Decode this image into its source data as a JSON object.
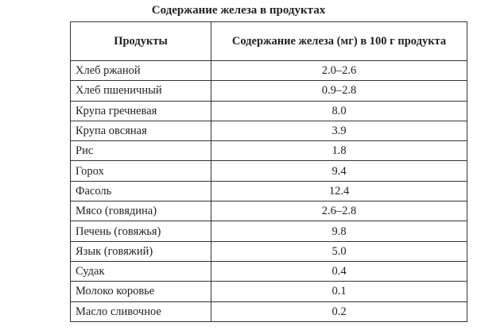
{
  "title": "Содержание железа в продуктах",
  "table": {
    "header": [
      "Продукты",
      "Содержание железа (мг) в 100 г продукта"
    ],
    "rows": [
      [
        "Хлеб ржаной",
        "2.0–2.6"
      ],
      [
        "Хлеб пшеничный",
        "0.9–2.8"
      ],
      [
        "Крупа гречневая",
        "8.0"
      ],
      [
        "Крупа овсяная",
        "3.9"
      ],
      [
        "Рис",
        "1.8"
      ],
      [
        "Горох",
        "9.4"
      ],
      [
        "Фасоль",
        "12.4"
      ],
      [
        "Мясо (говядина)",
        "2.6–2.8"
      ],
      [
        "Печень (говяжья)",
        "9.8"
      ],
      [
        "Язык (говяжий)",
        "5.0"
      ],
      [
        "Судак",
        "0.4"
      ],
      [
        "Молоко коровье",
        "0.1"
      ],
      [
        "Масло сливочное",
        "0.2"
      ]
    ]
  }
}
